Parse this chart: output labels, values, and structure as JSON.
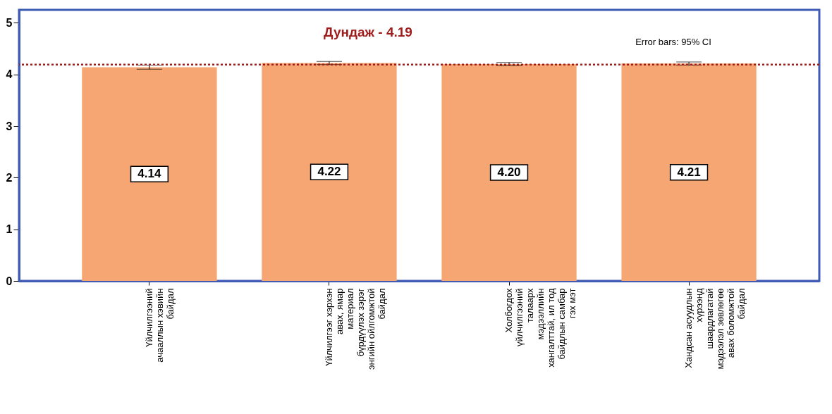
{
  "chart_data": {
    "type": "bar",
    "categories": [
      "Үйлчилгээний\nачааллын хэвийн\nбайдал",
      "Үйлчилгээг хэрхэн\nавах, ямар\nматериал\nбүрдүүлэх зэрэг\nэнгийн ойлгомжтой\nбайдал",
      "Холбогдох\nүйлчилгээний\nталаарх\nмэдээллийн\nхангалттай, ил тод\nбайдлын самбар\nгэх мэт",
      "Хандсан асуудлын\nхүрээнд\nшаардлагатай\nмэдээлэл зөвлөгөө\nавах боломжтой\nбайдал"
    ],
    "values": [
      4.14,
      4.22,
      4.2,
      4.21
    ],
    "errors": [
      0.04,
      0.03,
      0.03,
      0.03
    ],
    "color": "#f5a672",
    "value_labels": [
      "4.14",
      "4.22",
      "4.20",
      "4.21"
    ],
    "ylim": [
      0,
      5.25
    ],
    "yticks": [
      0,
      1,
      2,
      3,
      4,
      5
    ],
    "ref_lines": [
      {
        "axis": "y",
        "value": 4.19,
        "label": "Дундаж - 4.19",
        "color": "#a01c1c",
        "line_style": "dotted"
      }
    ],
    "annotations": [
      "Error bars: 95% CI"
    ],
    "grid": false
  }
}
